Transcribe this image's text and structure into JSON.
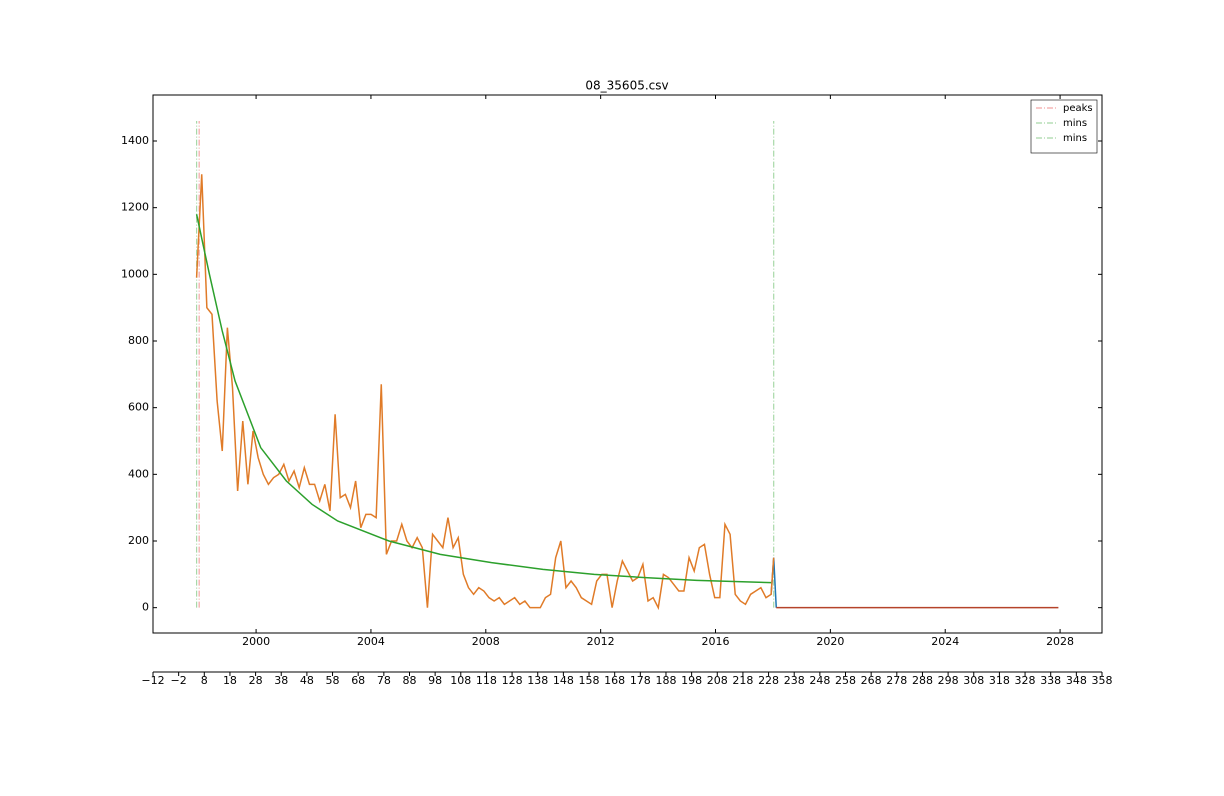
{
  "chart_data": {
    "type": "line",
    "title": "08_35605.csv",
    "xlim": [
      -12,
      358
    ],
    "xticks": [
      {
        "value": -12,
        "label": "−12"
      },
      {
        "value": -2,
        "label": "−2"
      },
      8,
      18,
      28,
      38,
      48,
      58,
      68,
      78,
      88,
      98,
      108,
      118,
      128,
      138,
      148,
      158,
      168,
      178,
      188,
      198,
      208,
      218,
      228,
      238,
      248,
      258,
      268,
      278,
      288,
      298,
      308,
      318,
      328,
      338,
      348,
      358
    ],
    "date_xlim": [
      1996.41,
      2029.46
    ],
    "date_xticks": [
      2000,
      2004,
      2008,
      2012,
      2016,
      2020,
      2024,
      2028
    ],
    "ylim": [
      -76,
      1538
    ],
    "yticks": [
      0,
      200,
      400,
      600,
      800,
      1000,
      1200,
      1400
    ],
    "legend": "upper right",
    "series": [
      {
        "color": "#1f77b4",
        "x": [
          229,
          230,
          231
        ],
        "values": [
          40,
          150,
          0
        ]
      },
      {
        "color": "#e07b28",
        "x": [
          5,
          7,
          9,
          11,
          13,
          15,
          17,
          19,
          21,
          23,
          25,
          27,
          29,
          31,
          33,
          35,
          37,
          39,
          41,
          43,
          45,
          47,
          49,
          51,
          53,
          55,
          57,
          59,
          61,
          63,
          65,
          67,
          69,
          71,
          73,
          75,
          77,
          79,
          81,
          83,
          85,
          87,
          89,
          91,
          93,
          95,
          97,
          99,
          101,
          103,
          105,
          107,
          109,
          111,
          113,
          115,
          117,
          119,
          121,
          123,
          125,
          127,
          129,
          131,
          133,
          135,
          137,
          139,
          141,
          143,
          145,
          147,
          149,
          151,
          153,
          155,
          157,
          159,
          161,
          163,
          165,
          167,
          169,
          171,
          173,
          175,
          177,
          179,
          181,
          183,
          185,
          187,
          189,
          191,
          193,
          195,
          197,
          199,
          201,
          203,
          205,
          207,
          209,
          211,
          213,
          215,
          217,
          219,
          221,
          223,
          225,
          227,
          229,
          230
        ],
        "values": [
          990,
          1300,
          900,
          880,
          620,
          470,
          840,
          660,
          350,
          560,
          370,
          530,
          450,
          400,
          370,
          390,
          400,
          430,
          380,
          410,
          360,
          420,
          370,
          370,
          320,
          370,
          290,
          580,
          330,
          340,
          300,
          380,
          240,
          280,
          280,
          270,
          670,
          160,
          200,
          200,
          250,
          200,
          180,
          210,
          180,
          0,
          220,
          200,
          180,
          270,
          180,
          210,
          100,
          60,
          40,
          60,
          50,
          30,
          20,
          30,
          10,
          20,
          30,
          10,
          20,
          0,
          0,
          0,
          30,
          40,
          150,
          200,
          60,
          80,
          60,
          30,
          20,
          10,
          80,
          100,
          100,
          0,
          80,
          140,
          110,
          80,
          90,
          130,
          20,
          30,
          0,
          100,
          90,
          70,
          50,
          50,
          150,
          110,
          180,
          190,
          100,
          30,
          30,
          250,
          220,
          40,
          20,
          10,
          40,
          50,
          60,
          30,
          40,
          150
        ]
      },
      {
        "color": "#2ca02c",
        "x": [
          5,
          10,
          15,
          20,
          30,
          40,
          50,
          60,
          80,
          100,
          120,
          140,
          160,
          180,
          200,
          229
        ],
        "values": [
          1180,
          1000,
          830,
          680,
          480,
          380,
          310,
          260,
          200,
          160,
          135,
          115,
          100,
          90,
          82,
          75
        ]
      },
      {
        "color": "#b5432a",
        "x": [
          231,
          341
        ],
        "values": [
          0,
          0
        ]
      }
    ],
    "vlines": [
      {
        "name": "peaks",
        "color": "#f4a6a6",
        "x": 6,
        "ymin": 0,
        "ymax": 1460
      },
      {
        "name": "mins",
        "color": "#a8d8a8",
        "x": 5,
        "ymin": 0,
        "ymax": 1460
      },
      {
        "name": "mins",
        "color": "#a8d8a8",
        "x": 230,
        "ymin": 0,
        "ymax": 1460
      }
    ]
  }
}
